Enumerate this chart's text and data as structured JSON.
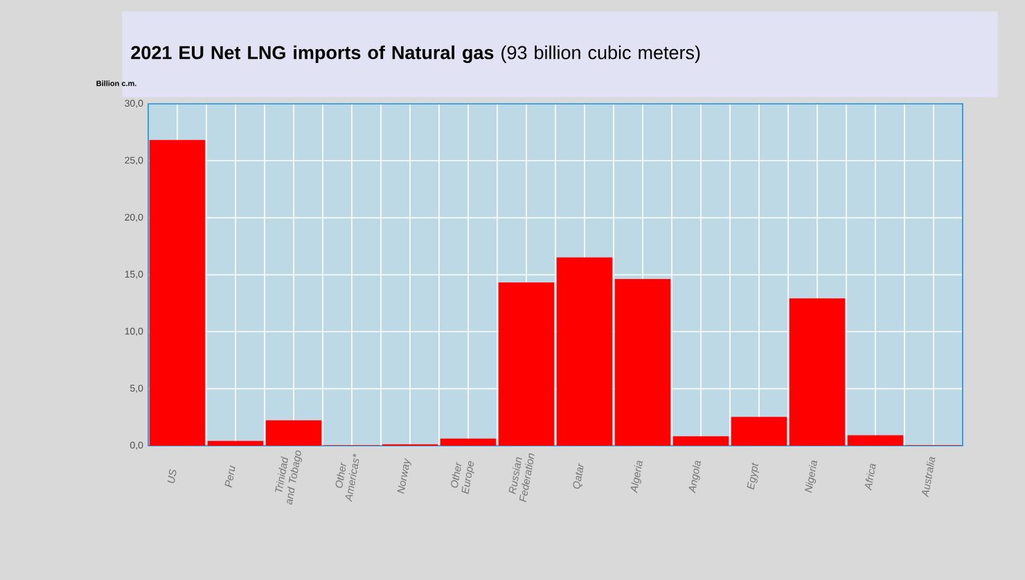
{
  "chart_data": {
    "type": "bar",
    "title": "**2021 EU Net LNG imports of Natural gas** (93 billion cubic meters)",
    "ylabel": "Billion c.m.",
    "categories": [
      "US",
      "Peru",
      "Trinidad and Tobago",
      "Other Americas*",
      "Norway",
      "Other Europe",
      "Russian Federation",
      "Qatar",
      "Algeria",
      "Angola",
      "Egypt",
      "Nigeria",
      "Africa",
      "Australia"
    ],
    "values": [
      26.8,
      0.4,
      2.2,
      0.0,
      0.1,
      0.6,
      14.3,
      16.5,
      14.6,
      0.8,
      2.5,
      12.9,
      0.9,
      0.0
    ],
    "color": "#ff0000",
    "ylim": [
      0,
      30
    ],
    "yticks": [
      {
        "value": 0,
        "label": "0,0"
      },
      {
        "value": 5,
        "label": "5,0"
      },
      {
        "value": 10,
        "label": "10,0"
      },
      {
        "value": 15,
        "label": "15,0"
      },
      {
        "value": 20,
        "label": "20,0"
      },
      {
        "value": 25,
        "label": "25,0"
      },
      {
        "value": 30,
        "label": "30,0"
      }
    ],
    "grid": true
  }
}
